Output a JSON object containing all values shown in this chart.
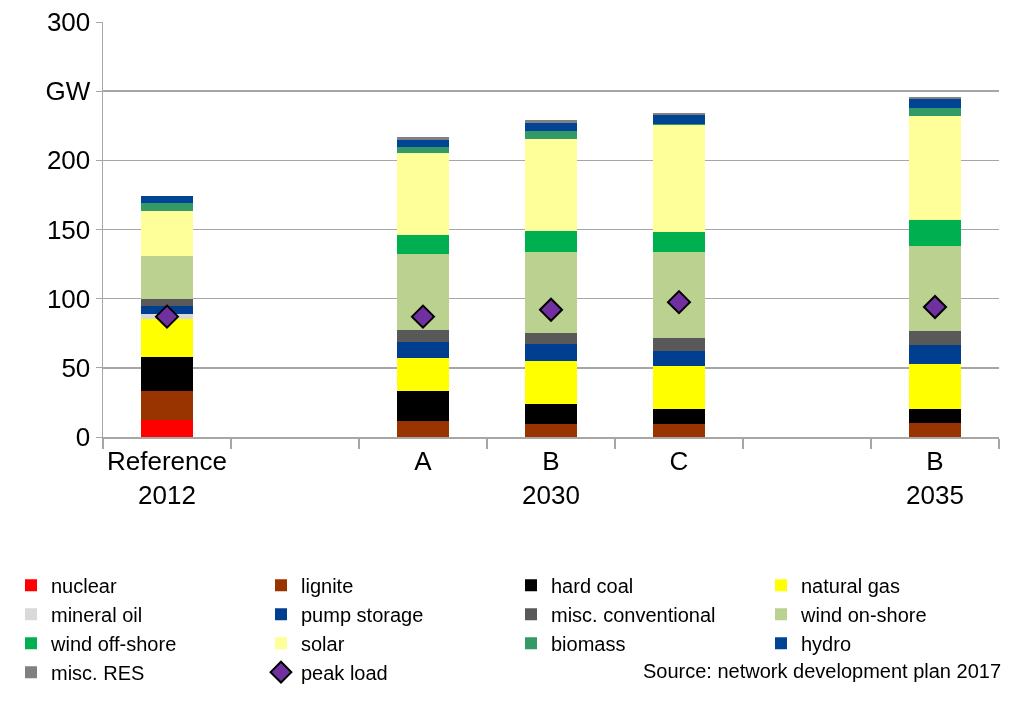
{
  "chart_data": {
    "type": "bar",
    "stacked": true,
    "categories": [
      "Reference\n2012",
      null,
      "A",
      "B\n2030",
      "C",
      null,
      "B\n2035"
    ],
    "ylim": [
      0,
      300
    ],
    "yticks": [
      0,
      50,
      100,
      150,
      200,
      {
        "value": 250,
        "label": "GW"
      },
      300
    ],
    "grid": "y",
    "legend": "bottom",
    "marker": "diamond",
    "annotations": [
      "Source: network development plan 2017"
    ],
    "series": [
      {
        "name": "nuclear",
        "color": "#ff0000",
        "values": [
          12,
          null,
          0,
          0,
          0,
          null,
          0
        ]
      },
      {
        "name": "lignite",
        "color": "#993300",
        "values": [
          21,
          null,
          11.5,
          9.5,
          9.5,
          null,
          10
        ]
      },
      {
        "name": "hard coal",
        "color": "#000000",
        "values": [
          25,
          null,
          21.5,
          14.5,
          10.5,
          null,
          10
        ]
      },
      {
        "name": "natural gas",
        "color": "#ffff00",
        "values": [
          27,
          null,
          24,
          31,
          31,
          null,
          33
        ]
      },
      {
        "name": "mineral oil",
        "color": "#d9d9d9",
        "values": [
          4,
          null,
          0,
          0,
          0,
          null,
          0
        ]
      },
      {
        "name": "pump storage",
        "color": "#003f8f",
        "values": [
          6,
          null,
          12,
          12.5,
          11.5,
          null,
          13.5
        ]
      },
      {
        "name": "misc. conventional",
        "color": "#595959",
        "values": [
          4.5,
          null,
          8.5,
          8,
          9,
          null,
          10
        ]
      },
      {
        "name": "wind on-shore",
        "color": "#bbd18f",
        "values": [
          31,
          null,
          54.5,
          58.5,
          62,
          null,
          61.5
        ]
      },
      {
        "name": "wind off-shore",
        "color": "#00b050",
        "values": [
          0,
          null,
          14,
          15,
          15,
          null,
          19
        ]
      },
      {
        "name": "solar",
        "color": "#ffff99",
        "values": [
          33,
          null,
          59,
          66.5,
          77,
          null,
          75
        ]
      },
      {
        "name": "biomass",
        "color": "#339966",
        "values": [
          6,
          null,
          5,
          5.5,
          0.5,
          null,
          6
        ]
      },
      {
        "name": "hydro",
        "color": "#004494",
        "values": [
          4.5,
          null,
          5,
          6,
          6.5,
          null,
          6
        ]
      },
      {
        "name": "misc. RES",
        "color": "#808080",
        "values": [
          null,
          null,
          2,
          2,
          2,
          null,
          2
        ]
      },
      {
        "name": "peak load",
        "type": "scatter",
        "color": "#7030a0",
        "values": [
          87,
          null,
          87,
          92,
          97.5,
          null,
          94
        ]
      }
    ]
  }
}
